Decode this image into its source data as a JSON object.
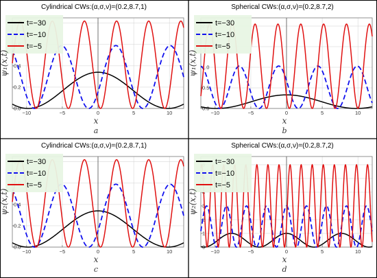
{
  "chart_data": [
    {
      "type": "line",
      "title": "Cylindrical CWs:(α,σ,ν)=(0.2,8.7,1)",
      "xlabel": "x",
      "ylabel": "ψ₁(x,t)",
      "panel_letter": "a",
      "xlim": [
        -12,
        12
      ],
      "ylim": [
        0,
        0.85
      ],
      "xticks": [
        -10,
        -5,
        0,
        5,
        10
      ],
      "yticks": [
        0.0,
        0.2,
        0.4,
        0.6,
        0.8
      ],
      "ytick_labels": [
        "0.0",
        "0.2",
        "0.4",
        "0.6",
        "0.8"
      ],
      "grid": true,
      "legend_position": "top-left",
      "series": [
        {
          "name": "t=−30",
          "color": "#000000",
          "style": "solid",
          "amplitude": 0.34,
          "period": 19.6,
          "phase": 0.0
        },
        {
          "name": "t=−10",
          "color": "#1010ee",
          "style": "dashed",
          "amplitude": 0.59,
          "period": 7.6,
          "phase": 2.5
        },
        {
          "name": "t=−5",
          "color": "#e01010",
          "style": "solid",
          "amplitude": 0.82,
          "period": 4.5,
          "phase": -1.9
        }
      ]
    },
    {
      "type": "line",
      "title": "Spherical CWs:(α,σ,ν)=(0.2,8.7,2)",
      "xlabel": "x",
      "ylabel": "ψ₁(x,t)",
      "panel_letter": "b",
      "xlim": [
        -12,
        12
      ],
      "ylim": [
        0,
        2.2
      ],
      "xticks": [
        -10,
        -5,
        0,
        5,
        10
      ],
      "yticks": [
        0.0,
        0.5,
        1.0,
        1.5,
        2.0
      ],
      "ytick_labels": [
        "0.0",
        "0.5",
        "1.0",
        "1.5",
        "2.0"
      ],
      "grid": true,
      "legend_position": "top-left",
      "series": [
        {
          "name": "t=−30",
          "color": "#000000",
          "style": "solid",
          "amplitude": 0.33,
          "period": 19.6,
          "phase": 0.0
        },
        {
          "name": "t=−10",
          "color": "#1010ee",
          "style": "dashed",
          "amplitude": 1.03,
          "period": 5.5,
          "phase": -1.1
        },
        {
          "name": "t=−5",
          "color": "#e01010",
          "style": "solid",
          "amplitude": 2.05,
          "period": 3.2,
          "phase": -1.2
        }
      ]
    },
    {
      "type": "line",
      "title": "Cylindrical CWs:(α,σ,ν)=(0.2,8.7,1)",
      "xlabel": "x",
      "ylabel": "ψ₂(x,t)",
      "panel_letter": "c",
      "xlim": [
        -12,
        12
      ],
      "ylim": [
        0,
        0.85
      ],
      "xticks": [
        -10,
        -5,
        0,
        5,
        10
      ],
      "yticks": [
        0.0,
        0.2,
        0.4,
        0.6,
        0.8
      ],
      "ytick_labels": [
        "0.0",
        "0.2",
        "0.4",
        "0.6",
        "0.8"
      ],
      "grid": true,
      "legend_position": "top-left",
      "series": [
        {
          "name": "t=−30",
          "color": "#000000",
          "style": "solid",
          "amplitude": 0.34,
          "period": 19.6,
          "phase": 0.0
        },
        {
          "name": "t=−10",
          "color": "#1010ee",
          "style": "dashed",
          "amplitude": 0.59,
          "period": 7.6,
          "phase": 2.5
        },
        {
          "name": "t=−5",
          "color": "#e01010",
          "style": "solid",
          "amplitude": 0.82,
          "period": 4.5,
          "phase": -1.9
        }
      ]
    },
    {
      "type": "line",
      "title": "Spherical CWs:(α,σ,ν)=(0.2,8.7,2)",
      "xlabel": "x",
      "ylabel": "ψ₂(x,t)",
      "panel_letter": "d",
      "xlim": [
        -12,
        12
      ],
      "ylim": [
        0,
        6.6
      ],
      "xticks": [
        -10,
        -5,
        0,
        5,
        10
      ],
      "yticks": [
        0,
        1,
        2,
        3,
        4,
        5,
        6
      ],
      "ytick_labels": [
        "0",
        "1",
        "2",
        "3",
        "4",
        "5",
        "6"
      ],
      "grid": true,
      "legend_position": "top-left",
      "series": [
        {
          "name": "t=−30",
          "color": "#000000",
          "style": "solid",
          "amplitude": 1.0,
          "period": 7.7,
          "phase": 0.0
        },
        {
          "name": "t=−10",
          "color": "#1010ee",
          "style": "dashed",
          "amplitude": 3.0,
          "period": 2.8,
          "phase": 0.0
        },
        {
          "name": "t=−5",
          "color": "#e01010",
          "style": "solid",
          "amplitude": 6.0,
          "period": 1.55,
          "phase": 0.5
        }
      ]
    }
  ]
}
